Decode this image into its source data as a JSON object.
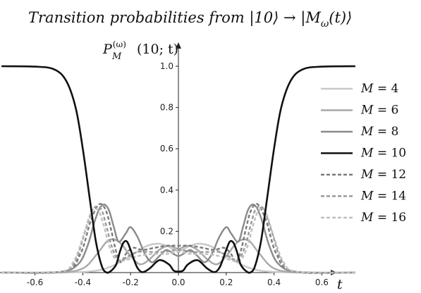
{
  "chart_data": {
    "type": "line",
    "title": "Transition probabilities from |10⟩ → |M_ω(t)⟩",
    "title_parts": [
      "Transition probabilities from ",
      "|10⟩ → |M",
      "ω",
      "(t)⟩"
    ],
    "ylabel": "P_M^(ω)(10; t)",
    "ylabel_parts": [
      "P",
      "(ω)",
      "M",
      "(10; t)"
    ],
    "xlabel": "t",
    "xlim": [
      -0.74,
      0.74
    ],
    "ylim": [
      0,
      1.0
    ],
    "xticks": [
      "-0.6",
      "-0.4",
      "-0.2",
      "0.0",
      "0.2",
      "0.4",
      "0.6"
    ],
    "xtick_values": [
      -0.6,
      -0.4,
      -0.2,
      0.0,
      0.2,
      0.4,
      0.6
    ],
    "yticks": [
      "0.2",
      "0.4",
      "0.6",
      "0.8",
      "1.0"
    ],
    "ytick_values": [
      0.2,
      0.4,
      0.6,
      0.8,
      1.0
    ],
    "legend_position": "right",
    "series": [
      {
        "name": "M = 4",
        "label_var": "M",
        "label_rest": " = 4",
        "color": "#c8c8c8",
        "dash": "solid",
        "x": [
          -0.74,
          -0.6,
          -0.45,
          -0.35,
          -0.28,
          -0.2,
          -0.14,
          -0.09,
          -0.05,
          0,
          0.05,
          0.09,
          0.14,
          0.2,
          0.28,
          0.35,
          0.45,
          0.6,
          0.74
        ],
        "y": [
          0,
          0,
          0.001,
          0.008,
          0.03,
          0.08,
          0.125,
          0.14,
          0.13,
          0.105,
          0.13,
          0.14,
          0.125,
          0.08,
          0.03,
          0.008,
          0.001,
          0,
          0
        ]
      },
      {
        "name": "M = 6",
        "label_var": "M",
        "label_rest": " = 6",
        "color": "#a8a8a8",
        "dash": "solid",
        "x": [
          -0.74,
          -0.5,
          -0.4,
          -0.34,
          -0.3,
          -0.27,
          -0.24,
          -0.2,
          -0.16,
          -0.12,
          -0.08,
          -0.04,
          0,
          0.04,
          0.08,
          0.12,
          0.16,
          0.2,
          0.24,
          0.27,
          0.3,
          0.34,
          0.4,
          0.5,
          0.74
        ],
        "y": [
          0,
          0.001,
          0.02,
          0.09,
          0.15,
          0.16,
          0.14,
          0.08,
          0.04,
          0.065,
          0.11,
          0.13,
          0.115,
          0.13,
          0.11,
          0.065,
          0.04,
          0.08,
          0.14,
          0.16,
          0.15,
          0.09,
          0.02,
          0.001,
          0
        ]
      },
      {
        "name": "M = 8",
        "label_var": "M",
        "label_rest": " = 8",
        "color": "#8a8a8a",
        "dash": "solid",
        "x": [
          -0.74,
          -0.5,
          -0.42,
          -0.38,
          -0.35,
          -0.33,
          -0.31,
          -0.29,
          -0.27,
          -0.25,
          -0.22,
          -0.2,
          -0.17,
          -0.14,
          -0.11,
          -0.08,
          -0.05,
          -0.02,
          0,
          0.02,
          0.05,
          0.08,
          0.11,
          0.14,
          0.17,
          0.2,
          0.22,
          0.25,
          0.27,
          0.29,
          0.31,
          0.33,
          0.35,
          0.38,
          0.42,
          0.5,
          0.74
        ],
        "y": [
          0,
          0.003,
          0.04,
          0.13,
          0.25,
          0.31,
          0.33,
          0.3,
          0.22,
          0.15,
          0.19,
          0.22,
          0.17,
          0.09,
          0.05,
          0.08,
          0.11,
          0.09,
          0.08,
          0.09,
          0.11,
          0.08,
          0.05,
          0.09,
          0.17,
          0.22,
          0.19,
          0.15,
          0.22,
          0.3,
          0.33,
          0.31,
          0.25,
          0.13,
          0.04,
          0.003,
          0
        ]
      },
      {
        "name": "M = 10",
        "label_var": "M",
        "label_rest": " = 10",
        "color": "#111111",
        "dash": "solid",
        "width": 2.6,
        "x": [
          -0.74,
          -0.6,
          -0.52,
          -0.47,
          -0.43,
          -0.4,
          -0.37,
          -0.345,
          -0.32,
          -0.3,
          -0.28,
          -0.26,
          -0.245,
          -0.23,
          -0.215,
          -0.2,
          -0.185,
          -0.17,
          -0.15,
          -0.12,
          -0.08,
          -0.04,
          -0.02,
          0,
          0.02,
          0.04,
          0.08,
          0.12,
          0.15,
          0.17,
          0.185,
          0.2,
          0.215,
          0.23,
          0.245,
          0.26,
          0.28,
          0.3,
          0.32,
          0.345,
          0.37,
          0.4,
          0.43,
          0.47,
          0.52,
          0.6,
          0.74
        ],
        "y": [
          1,
          0.998,
          0.985,
          0.93,
          0.8,
          0.6,
          0.35,
          0.15,
          0.03,
          0,
          0.01,
          0.04,
          0.1,
          0.145,
          0.15,
          0.11,
          0.06,
          0.02,
          0.002,
          0.02,
          0.06,
          0.04,
          0.01,
          0.005,
          0.01,
          0.04,
          0.06,
          0.02,
          0.002,
          0.02,
          0.06,
          0.11,
          0.15,
          0.145,
          0.1,
          0.04,
          0.01,
          0,
          0.03,
          0.15,
          0.35,
          0.6,
          0.8,
          0.93,
          0.985,
          0.998,
          1
        ]
      },
      {
        "name": "M = 12",
        "label_var": "M",
        "label_rest": " = 12",
        "color": "#7a7a7a",
        "dash": "dashed",
        "x": [
          -0.74,
          -0.48,
          -0.41,
          -0.37,
          -0.34,
          -0.32,
          -0.3,
          -0.28,
          -0.26,
          -0.24,
          -0.22,
          -0.19,
          -0.15,
          -0.1,
          -0.05,
          0,
          0.05,
          0.1,
          0.15,
          0.19,
          0.22,
          0.24,
          0.26,
          0.28,
          0.3,
          0.32,
          0.34,
          0.37,
          0.41,
          0.48,
          0.74
        ],
        "y": [
          0,
          0.005,
          0.09,
          0.24,
          0.32,
          0.33,
          0.29,
          0.2,
          0.1,
          0.05,
          0.09,
          0.12,
          0.11,
          0.12,
          0.13,
          0.13,
          0.13,
          0.12,
          0.11,
          0.12,
          0.09,
          0.05,
          0.1,
          0.2,
          0.29,
          0.33,
          0.32,
          0.24,
          0.09,
          0.005,
          0
        ]
      },
      {
        "name": "M = 14",
        "label_var": "M",
        "label_rest": " = 14",
        "color": "#9a9a9a",
        "dash": "dashed",
        "x": [
          -0.74,
          -0.49,
          -0.43,
          -0.39,
          -0.36,
          -0.34,
          -0.32,
          -0.3,
          -0.28,
          -0.25,
          -0.21,
          -0.17,
          -0.12,
          -0.06,
          0,
          0.06,
          0.12,
          0.17,
          0.21,
          0.25,
          0.28,
          0.3,
          0.32,
          0.34,
          0.36,
          0.39,
          0.43,
          0.49,
          0.74
        ],
        "y": [
          0,
          0.004,
          0.06,
          0.2,
          0.3,
          0.32,
          0.3,
          0.22,
          0.13,
          0.06,
          0.08,
          0.1,
          0.1,
          0.1,
          0.11,
          0.1,
          0.1,
          0.1,
          0.08,
          0.06,
          0.13,
          0.22,
          0.3,
          0.32,
          0.3,
          0.2,
          0.06,
          0.004,
          0
        ]
      },
      {
        "name": "M = 16",
        "label_var": "M",
        "label_rest": " = 16",
        "color": "#c0c0c0",
        "dash": "dashed",
        "x": [
          -0.74,
          -0.5,
          -0.44,
          -0.4,
          -0.37,
          -0.35,
          -0.33,
          -0.31,
          -0.29,
          -0.26,
          -0.22,
          -0.17,
          -0.11,
          -0.05,
          0,
          0.05,
          0.11,
          0.17,
          0.22,
          0.26,
          0.29,
          0.31,
          0.33,
          0.35,
          0.37,
          0.4,
          0.44,
          0.5,
          0.74
        ],
        "y": [
          0,
          0.003,
          0.05,
          0.17,
          0.28,
          0.31,
          0.29,
          0.22,
          0.13,
          0.06,
          0.06,
          0.08,
          0.09,
          0.09,
          0.1,
          0.09,
          0.09,
          0.08,
          0.06,
          0.06,
          0.13,
          0.22,
          0.29,
          0.31,
          0.28,
          0.17,
          0.05,
          0.003,
          0
        ]
      }
    ]
  }
}
